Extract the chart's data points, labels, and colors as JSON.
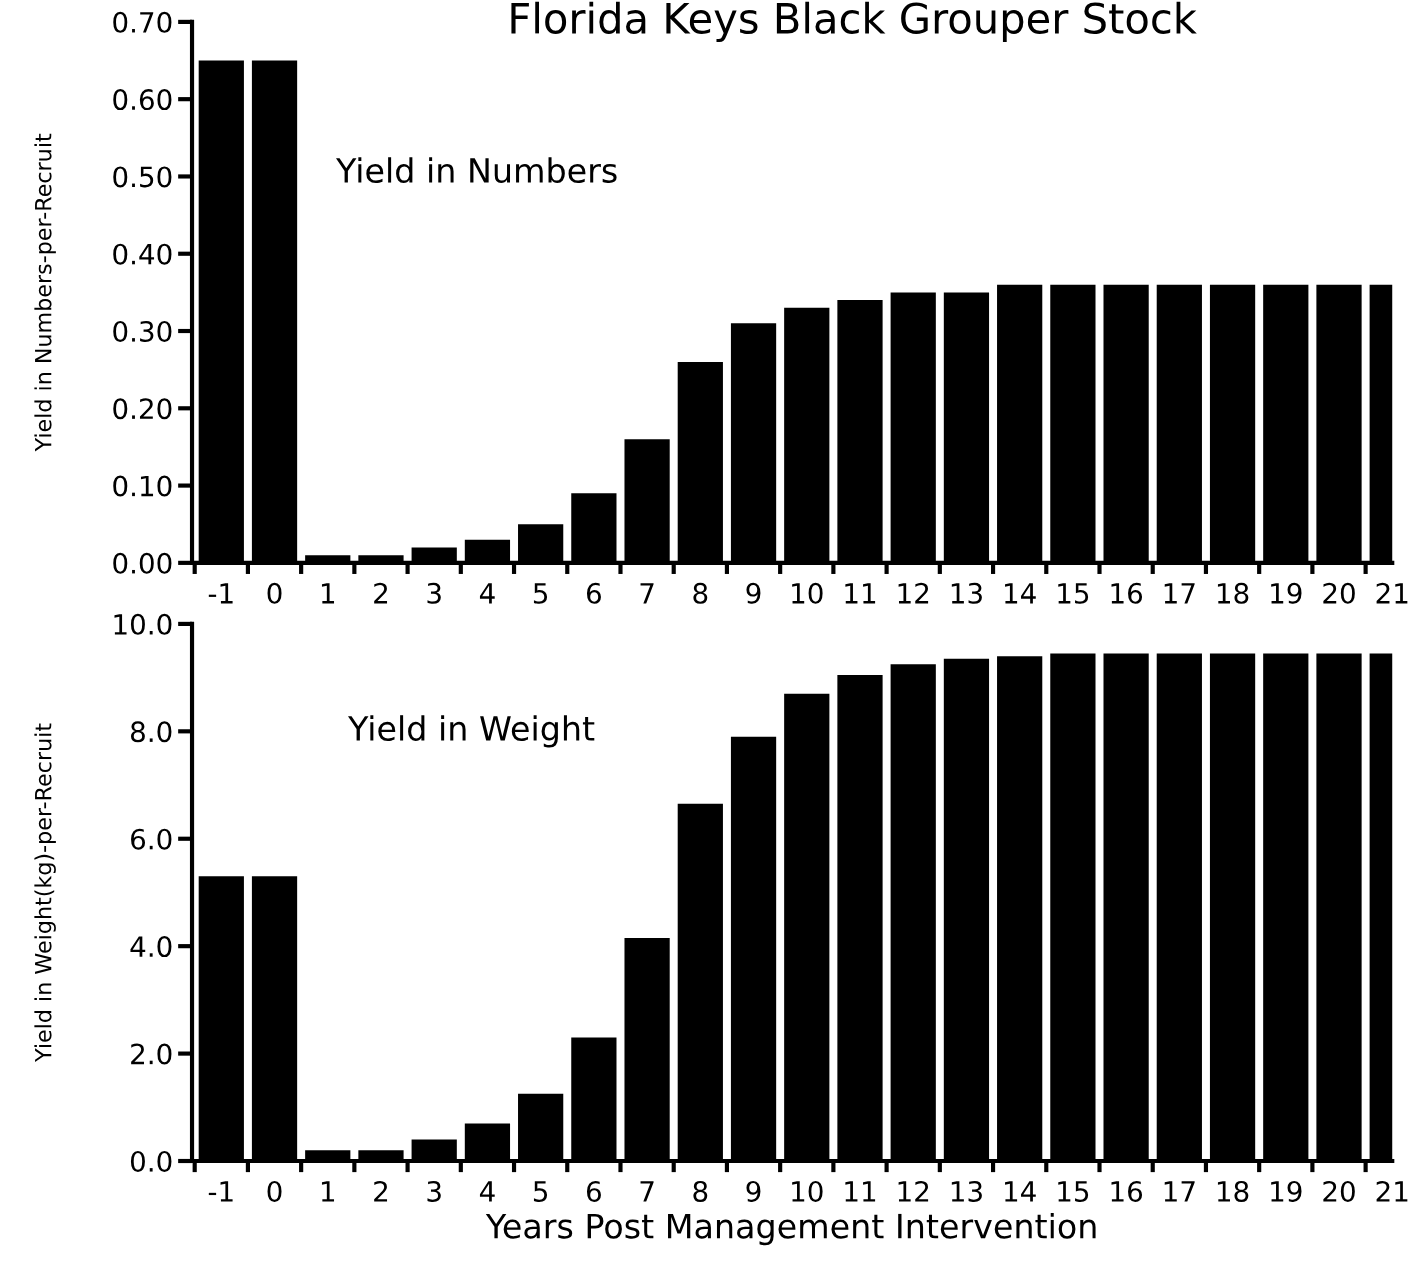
{
  "chart_data": [
    {
      "type": "bar",
      "title": "Florida Keys Black Grouper Stock",
      "ylabel": "Yield in Numbers-per-Recruit",
      "annotations": [
        "Yield in Numbers"
      ],
      "categories": [
        "-1",
        "0",
        "1",
        "2",
        "3",
        "4",
        "5",
        "6",
        "7",
        "8",
        "9",
        "10",
        "11",
        "12",
        "13",
        "14",
        "15",
        "16",
        "17",
        "18",
        "19",
        "20",
        "21"
      ],
      "values": [
        0.65,
        0.65,
        0.01,
        0.01,
        0.02,
        0.03,
        0.05,
        0.09,
        0.16,
        0.26,
        0.31,
        0.33,
        0.34,
        0.35,
        0.35,
        0.36,
        0.36,
        0.36,
        0.36,
        0.36,
        0.36,
        0.36,
        0.36
      ],
      "color": "#000000",
      "ylim": [
        0,
        0.7
      ],
      "yticks": [
        {
          "value": 0,
          "label": "0.00"
        },
        {
          "value": 0.1,
          "label": "0.10"
        },
        {
          "value": 0.2,
          "label": "0.20"
        },
        {
          "value": 0.3,
          "label": "0.30"
        },
        {
          "value": 0.4,
          "label": "0.40"
        },
        {
          "value": 0.5,
          "label": "0.50"
        },
        {
          "value": 0.6,
          "label": "0.60"
        },
        {
          "value": 0.7,
          "label": "0.70"
        }
      ],
      "grid": false,
      "legend": false
    },
    {
      "type": "bar",
      "xlabel": "Years Post Management Intervention",
      "ylabel": "Yield in Weight(kg)-per-Recruit",
      "annotations": [
        "Yield in Weight"
      ],
      "categories": [
        "-1",
        "0",
        "1",
        "2",
        "3",
        "4",
        "5",
        "6",
        "7",
        "8",
        "9",
        "10",
        "11",
        "12",
        "13",
        "14",
        "15",
        "16",
        "17",
        "18",
        "19",
        "20",
        "21"
      ],
      "values": [
        5.3,
        5.3,
        0.2,
        0.2,
        0.4,
        0.7,
        1.25,
        2.3,
        4.15,
        6.65,
        7.9,
        8.7,
        9.05,
        9.25,
        9.35,
        9.4,
        9.45,
        9.45,
        9.45,
        9.45,
        9.45,
        9.45,
        9.45
      ],
      "color": "#000000",
      "ylim": [
        0,
        10
      ],
      "yticks": [
        {
          "value": 0,
          "label": "0.0"
        },
        {
          "value": 2,
          "label": "2.0"
        },
        {
          "value": 4,
          "label": "4.0"
        },
        {
          "value": 6,
          "label": "6.0"
        },
        {
          "value": 8,
          "label": "8.0"
        },
        {
          "value": 10,
          "label": "10.0"
        }
      ],
      "grid": false,
      "legend": false
    }
  ]
}
